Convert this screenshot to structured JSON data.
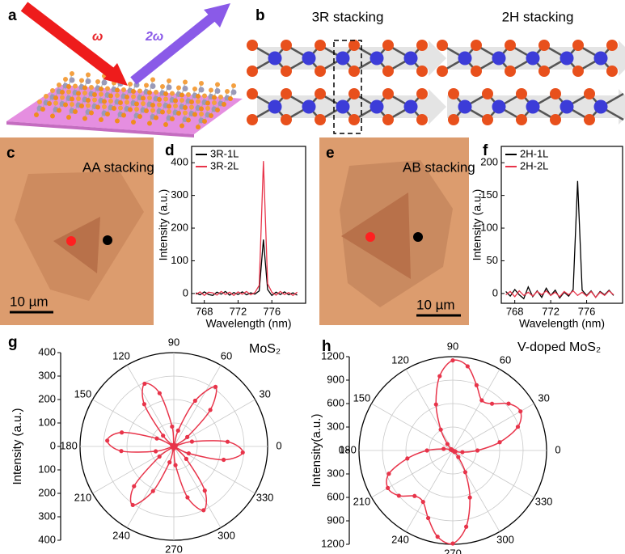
{
  "panel_a": {
    "label": "a",
    "omega": "ω",
    "two_omega": "2ω"
  },
  "panel_b": {
    "label": "b",
    "left_title": "3R stacking",
    "right_title": "2H stacking"
  },
  "panel_c": {
    "label": "c",
    "title": "AA stacking",
    "scale_bar": "10 µm"
  },
  "panel_e": {
    "label": "e",
    "title": "AB stacking",
    "scale_bar": "10 µm"
  },
  "chart_data": [
    {
      "type": "line",
      "panel_label": "d",
      "x_label": "Wavelength (nm)",
      "y_label": "Intensity (a.u.)",
      "x": [
        767,
        767.5,
        768,
        768.5,
        769,
        769.5,
        770,
        770.5,
        771,
        771.5,
        772,
        772.5,
        773,
        773.5,
        774,
        774.5,
        775,
        775.5,
        776,
        776.5,
        777,
        777.5,
        778,
        778.5,
        779
      ],
      "series": [
        {
          "name": "3R-1L",
          "color": "#000000",
          "values": [
            2,
            -4,
            5,
            -3,
            -6,
            4,
            -2,
            6,
            -5,
            3,
            -3,
            5,
            -4,
            2,
            -2,
            8,
            165,
            12,
            -6,
            4,
            -3,
            5,
            -4,
            2,
            -5
          ]
        },
        {
          "name": "3R-2L",
          "color": "#e8344a",
          "values": [
            -3,
            5,
            -6,
            4,
            2,
            -5,
            6,
            -3,
            4,
            -6,
            5,
            -2,
            6,
            -4,
            3,
            25,
            405,
            30,
            4,
            -5,
            6,
            -3,
            3,
            -6,
            4
          ]
        }
      ],
      "xlim": [
        766.5,
        780
      ],
      "xticks": [
        768,
        772,
        776
      ],
      "ylim": [
        -30,
        450
      ],
      "yticks": [
        0,
        100,
        200,
        300,
        400
      ]
    },
    {
      "type": "line",
      "panel_label": "f",
      "x_label": "Wavelength (nm)",
      "y_label": "Intensity (a.u.)",
      "x": [
        767,
        767.5,
        768,
        768.5,
        769,
        769.5,
        770,
        770.5,
        771,
        771.5,
        772,
        772.5,
        773,
        773.5,
        774,
        774.5,
        775,
        775.5,
        776,
        776.5,
        777,
        777.5,
        778,
        778.5,
        779
      ],
      "series": [
        {
          "name": "2H-1L",
          "color": "#000000",
          "values": [
            3,
            -4,
            6,
            -2,
            -8,
            10,
            -5,
            4,
            -6,
            8,
            -3,
            5,
            -7,
            2,
            -4,
            6,
            172,
            5,
            -3,
            4,
            -6,
            3,
            -2,
            5,
            -3
          ]
        },
        {
          "name": "2H-2L",
          "color": "#e8344a",
          "values": [
            -2,
            3,
            -5,
            4,
            -3,
            2,
            -4,
            3,
            -2,
            4,
            -3,
            2,
            -5,
            3,
            -2,
            4,
            -3,
            2,
            -4,
            3,
            -6,
            2,
            -3,
            4,
            -2
          ]
        }
      ],
      "xlim": [
        766.5,
        780
      ],
      "xticks": [
        768,
        772,
        776
      ],
      "ylim": [
        -15,
        225
      ],
      "yticks": [
        0,
        50,
        100,
        150,
        200
      ]
    },
    {
      "type": "polar",
      "panel_label": "g",
      "title": "MoS₂",
      "y_label": "Intensity (a.u.)",
      "color": "#e8344a",
      "theta": [
        5,
        15,
        25,
        35,
        45,
        55,
        65,
        75,
        85,
        95,
        105,
        115,
        125,
        135,
        145,
        155,
        165,
        175,
        185,
        195,
        205,
        215,
        225,
        235,
        245,
        255,
        265,
        275,
        285,
        295,
        305,
        315,
        325,
        335,
        345,
        355
      ],
      "values": [
        230,
        80,
        10,
        70,
        220,
        310,
        215,
        70,
        5,
        85,
        235,
        295,
        220,
        65,
        10,
        80,
        230,
        285,
        225,
        80,
        5,
        75,
        240,
        305,
        210,
        70,
        10,
        80,
        225,
        300,
        230,
        75,
        5,
        70,
        220,
        295
      ],
      "rlim": [
        0,
        400
      ],
      "rticks": [
        0,
        100,
        200,
        300,
        400
      ],
      "angle_ticks": [
        0,
        30,
        60,
        90,
        120,
        150,
        180,
        210,
        240,
        270,
        300,
        330
      ]
    },
    {
      "type": "polar",
      "panel_label": "h",
      "title": "V-doped MoS₂",
      "y_label": "Intensity(a.u.)",
      "color": "#e8344a",
      "theta": [
        0,
        10,
        20,
        30,
        40,
        50,
        60,
        70,
        80,
        90,
        100,
        110,
        120,
        130,
        140,
        150,
        160,
        170,
        180,
        190,
        200,
        210,
        220,
        230,
        240,
        250,
        260,
        270,
        280,
        290,
        300,
        310,
        320,
        330,
        340,
        350
      ],
      "values": [
        316,
        610,
        886,
        1000,
        932,
        781,
        741,
        889,
        1093,
        1152,
        966,
        627,
        308,
        107,
        24,
        5,
        29,
        119,
        330,
        590,
        870,
        960,
        900,
        760,
        760,
        920,
        1120,
        1190,
        990,
        640,
        320,
        110,
        30,
        10,
        35,
        125
      ],
      "rlim": [
        0,
        1200
      ],
      "rticks": [
        0,
        300,
        600,
        900,
        1200
      ],
      "angle_ticks": [
        0,
        30,
        60,
        90,
        120,
        150,
        180,
        210,
        240,
        270,
        300,
        330
      ]
    }
  ]
}
